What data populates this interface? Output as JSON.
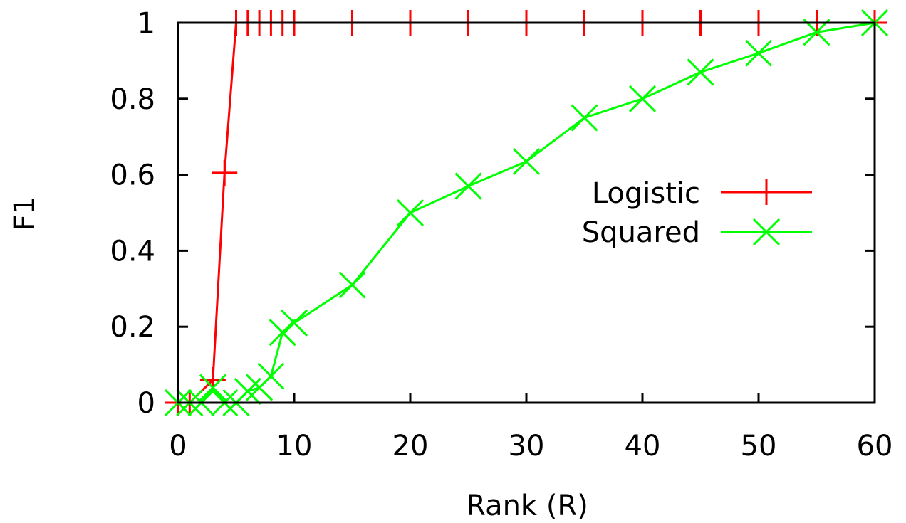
{
  "chart_data": {
    "type": "line",
    "title": "",
    "xlabel": "Rank (R)",
    "ylabel": "F1",
    "xlim": [
      0,
      60
    ],
    "ylim": [
      0,
      1
    ],
    "xticks": [
      0,
      10,
      20,
      30,
      40,
      50,
      60
    ],
    "yticks": [
      0,
      0.2,
      0.4,
      0.6,
      0.8,
      1
    ],
    "xtick_labels": [
      "0",
      "10",
      "20",
      "30",
      "40",
      "50",
      "60"
    ],
    "ytick_labels": [
      "0",
      "0.2",
      "0.4",
      "0.6",
      "0.8",
      "1"
    ],
    "grid": false,
    "legend_position": "right",
    "series": [
      {
        "name": "Logistic",
        "color": "#ff0000",
        "marker": "plus",
        "x": [
          0,
          1,
          3,
          4,
          5,
          6,
          7,
          8,
          9,
          10,
          15,
          20,
          25,
          30,
          35,
          40,
          45,
          50,
          55,
          60
        ],
        "y": [
          0,
          0,
          0.06,
          0.605,
          1,
          1,
          1,
          1,
          1,
          1,
          1,
          1,
          1,
          1,
          1,
          1,
          1,
          1,
          1,
          1
        ]
      },
      {
        "name": "Squared",
        "color": "#00ff00",
        "marker": "x",
        "x": [
          0,
          1,
          2,
          3,
          4,
          5,
          6,
          7,
          8,
          9,
          10,
          15,
          20,
          25,
          30,
          35,
          40,
          45,
          50,
          55,
          60
        ],
        "y": [
          0,
          0,
          0,
          0.04,
          0,
          0,
          0.03,
          0.04,
          0.07,
          0.185,
          0.21,
          0.31,
          0.5,
          0.57,
          0.635,
          0.75,
          0.8,
          0.87,
          0.92,
          0.975,
          1
        ]
      }
    ]
  }
}
